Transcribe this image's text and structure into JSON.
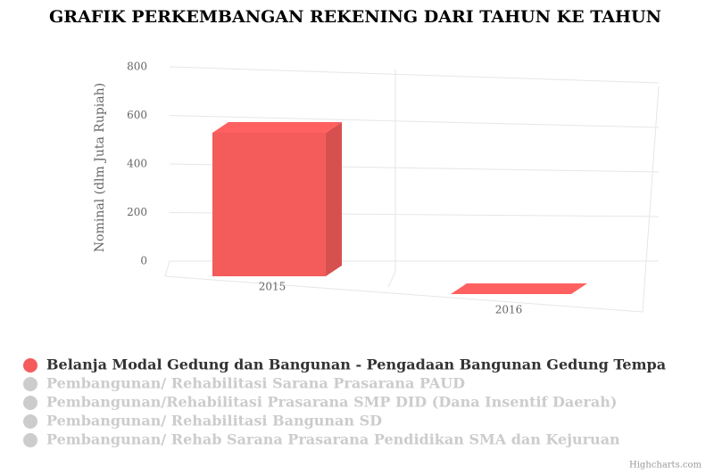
{
  "chart_data": {
    "type": "bar3d",
    "title": "GRAFIK PERKEMBANGAN REKENING DARI TAHUN KE TAHUN",
    "y_axis_label": "Nominal (dlm Juta Rupiah)",
    "categories": [
      "2015",
      "2016"
    ],
    "ylim": [
      0,
      800
    ],
    "yticks": [
      0,
      200,
      400,
      600,
      800
    ],
    "grid": true,
    "series": [
      {
        "name": "Belanja Modal Gedung dan Bangunan - Pengadaan Bangunan Gedung Tempa",
        "color": "#f45b5b",
        "visible": true,
        "values": [
          560,
          0
        ]
      },
      {
        "name": "Pembangunan/ Rehabilitasi Sarana Prasarana PAUD",
        "color": "#cccccc",
        "visible": false
      },
      {
        "name": "Pembangunan/Rehabilitasi Prasarana SMP DID (Dana Insentif Daerah)",
        "color": "#cccccc",
        "visible": false
      },
      {
        "name": "Pembangunan/ Rehabilitasi Bangunan SD",
        "color": "#cccccc",
        "visible": false
      },
      {
        "name": "Pembangunan/ Rehab Sarana Prasarana Pendidikan SMA dan Kejuruan",
        "color": "#cccccc",
        "visible": false
      }
    ],
    "credits": "Highcharts.com"
  }
}
